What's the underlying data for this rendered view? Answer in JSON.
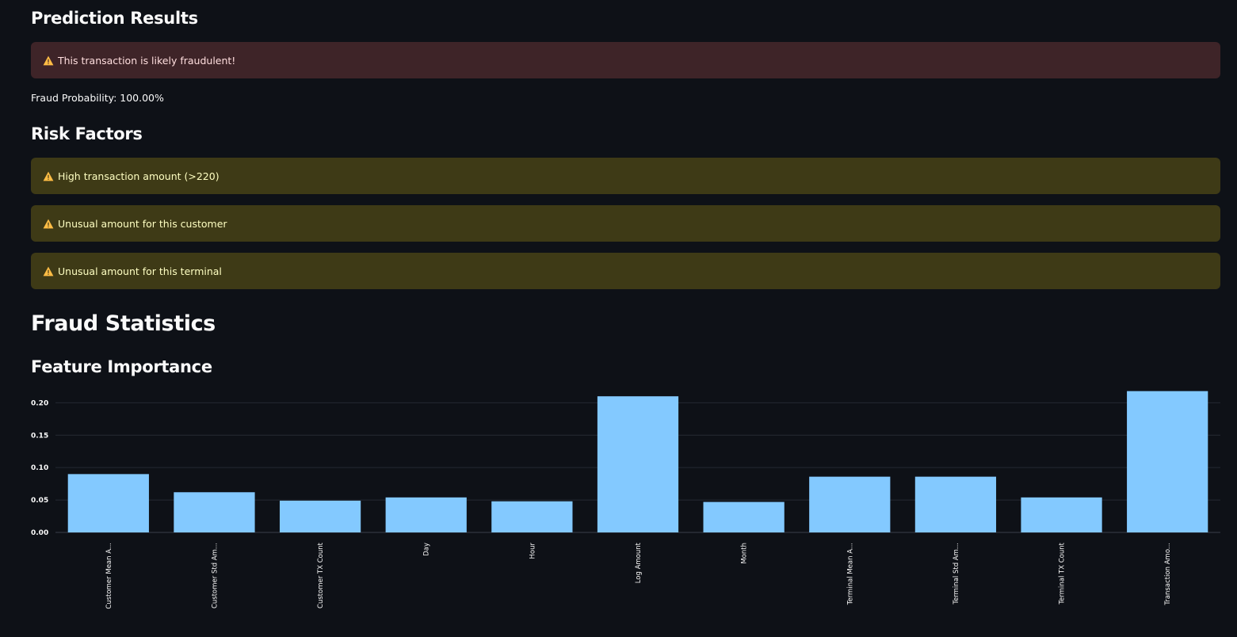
{
  "prediction": {
    "title": "Prediction Results",
    "alert_text": "This transaction is likely fraudulent!",
    "probability_text": "Fraud Probability: 100.00%"
  },
  "risk": {
    "title": "Risk Factors",
    "items": [
      {
        "label": "High transaction amount (>220)"
      },
      {
        "label": "Unusual amount for this customer"
      },
      {
        "label": "Unusual amount for this terminal"
      }
    ]
  },
  "stats": {
    "title": "Fraud Statistics",
    "subtitle": "Feature Importance"
  },
  "colors": {
    "background": "#0e1117",
    "error_bg": "#3e2428",
    "warning_bg": "#3e3a16",
    "warning_icon": "#ffbd45",
    "bar": "#83c9ff"
  },
  "icons": {
    "alert": "warning-triangle-icon"
  },
  "chart_data": {
    "type": "bar",
    "categories": [
      "Customer Mean A...",
      "Customer Std Am...",
      "Customer TX Count",
      "Day",
      "Hour",
      "Log Amount",
      "Month",
      "Terminal Mean A...",
      "Terminal Std Am...",
      "Terminal TX Count",
      "Transaction Amo..."
    ],
    "values": [
      0.09,
      0.062,
      0.049,
      0.054,
      0.048,
      0.21,
      0.047,
      0.086,
      0.086,
      0.054,
      0.218
    ],
    "yticks": [
      0.0,
      0.05,
      0.1,
      0.15,
      0.2
    ],
    "ytick_labels": [
      "0.00",
      "0.05",
      "0.10",
      "0.15",
      "0.20"
    ],
    "ylim": [
      0,
      0.22
    ],
    "grid": true,
    "xlabel": "",
    "ylabel": ""
  }
}
